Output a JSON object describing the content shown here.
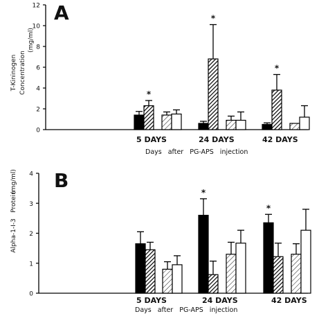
{
  "chart_data": [
    {
      "type": "bar",
      "panel_label": "A",
      "ylabel_lines": [
        "T-Kininogen",
        "Concentration",
        "(mg/ml)"
      ],
      "ylim": [
        0,
        12
      ],
      "yticks": [
        0,
        2,
        4,
        6,
        8,
        10,
        12
      ],
      "categories": [
        "5 DAYS",
        "24 DAYS",
        "42 DAYS"
      ],
      "xlabel": "Days after PG-APS injection",
      "series": [
        {
          "style": "solid",
          "values": [
            1.4,
            0.6,
            0.5
          ],
          "errors": [
            0.35,
            0.2,
            0.15
          ]
        },
        {
          "style": "dense-hatch",
          "values": [
            2.3,
            6.8,
            3.8
          ],
          "errors": [
            0.5,
            3.3,
            1.5
          ]
        },
        {
          "style": "light-hatch",
          "values": [
            1.4,
            0.9,
            0.6
          ],
          "errors": [
            0.3,
            0.4,
            0.0
          ]
        },
        {
          "style": "open",
          "values": [
            1.5,
            0.9,
            1.2
          ],
          "errors": [
            0.4,
            0.8,
            1.1
          ]
        }
      ],
      "significance": [
        {
          "category": "5 DAYS",
          "series": 1,
          "mark": "*"
        },
        {
          "category": "24 DAYS",
          "series": 1,
          "mark": "*"
        },
        {
          "category": "42 DAYS",
          "series": 1,
          "mark": "*"
        }
      ]
    },
    {
      "type": "bar",
      "panel_label": "B",
      "ylabel_lines": [
        "Alpha-1-I-3",
        "Protein",
        "(mg/ml)"
      ],
      "ylim": [
        0,
        4
      ],
      "yticks": [
        0,
        1,
        2,
        3,
        4
      ],
      "categories": [
        "5 DAYS",
        "24 DAYS",
        "42 DAYS"
      ],
      "xlabel": "Days after PG-APS injection",
      "series": [
        {
          "style": "solid",
          "values": [
            1.65,
            2.6,
            2.35
          ],
          "errors": [
            0.4,
            0.55,
            0.28
          ]
        },
        {
          "style": "dense-hatch",
          "values": [
            1.45,
            0.62,
            1.22
          ],
          "errors": [
            0.25,
            0.45,
            0.45
          ]
        },
        {
          "style": "light-hatch",
          "values": [
            0.8,
            1.3,
            1.3
          ],
          "errors": [
            0.25,
            0.4,
            0.35
          ]
        },
        {
          "style": "open",
          "values": [
            0.95,
            1.67,
            2.1
          ],
          "errors": [
            0.3,
            0.43,
            0.7
          ]
        }
      ],
      "significance": [
        {
          "category": "24 DAYS",
          "series": 0,
          "mark": "*"
        },
        {
          "category": "42 DAYS",
          "series": 0,
          "mark": "*"
        }
      ]
    }
  ]
}
